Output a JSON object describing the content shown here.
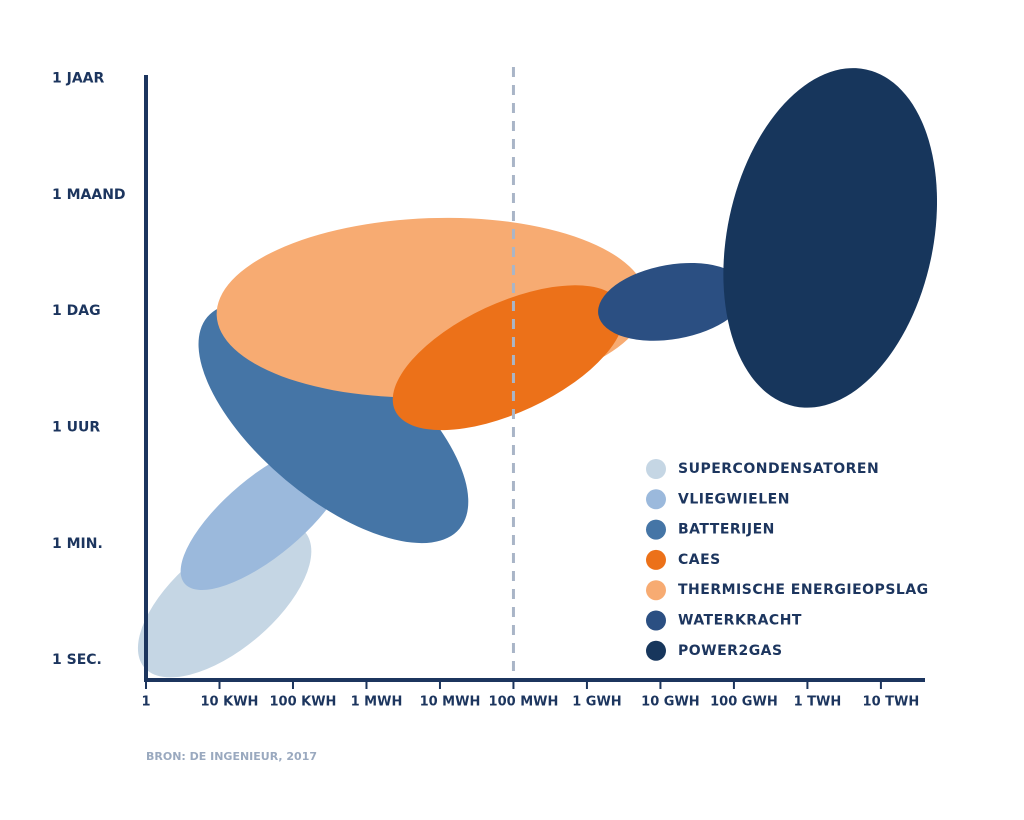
{
  "chart_data": {
    "type": "ellipse",
    "xlim": [
      0,
      10.6
    ],
    "ylim": [
      -0.17,
      5.03
    ],
    "xticks": [
      {
        "value": 0,
        "label": "1"
      },
      {
        "value": 1,
        "label": "10 KWH"
      },
      {
        "value": 2,
        "label": "100 KWH"
      },
      {
        "value": 3,
        "label": "1 MWH"
      },
      {
        "value": 4,
        "label": "10 MWH"
      },
      {
        "value": 5,
        "label": "100 MWH"
      },
      {
        "value": 6,
        "label": "1 GWH"
      },
      {
        "value": 7,
        "label": "10 GWH"
      },
      {
        "value": 8,
        "label": "100 GWH"
      },
      {
        "value": 9,
        "label": "1 TWH"
      },
      {
        "value": 10,
        "label": "10 TWH"
      }
    ],
    "yticks": [
      {
        "value": 0,
        "label": "1 SEC."
      },
      {
        "value": 1,
        "label": "1 MIN."
      },
      {
        "value": 2,
        "label": "1 UUR"
      },
      {
        "value": 3,
        "label": "1 DAG"
      },
      {
        "value": 4,
        "label": "1 MAAND"
      },
      {
        "value": 5,
        "label": "1 JAAR"
      }
    ],
    "vline": 5,
    "series": [
      {
        "name": "SUPERCONDENSATOREN",
        "color": "#c5d6e4",
        "center": [
          1.07,
          0.52
        ],
        "radii": [
          1.43,
          0.43
        ],
        "rotation": -40
      },
      {
        "name": "VLIEGWIELEN",
        "color": "#9bb9dc",
        "center": [
          1.62,
          1.24
        ],
        "radii": [
          1.43,
          0.34
        ],
        "rotation": -40
      },
      {
        "name": "BATTERIJEN",
        "color": "#4575a6",
        "center": [
          2.55,
          2.04
        ],
        "radii": [
          2.24,
          0.64
        ],
        "rotation": 40
      },
      {
        "name": "CAES",
        "color": "#ec7119",
        "center": [
          4.93,
          2.6
        ],
        "radii": [
          1.7,
          0.47
        ],
        "rotation": -25
      },
      {
        "name": "THERMISCHE ENERGIEOPSLAG",
        "color": "#f7ab72",
        "center": [
          3.89,
          3.03
        ],
        "radii": [
          2.93,
          0.77
        ],
        "rotation": -2
      },
      {
        "name": "WATERKRACHT",
        "color": "#2b4f82",
        "center": [
          7.16,
          3.08
        ],
        "radii": [
          1.02,
          0.32
        ],
        "rotation": -10
      },
      {
        "name": "POWER2GAS",
        "color": "#17365c",
        "center": [
          9.31,
          3.63
        ],
        "radii": [
          1.4,
          1.48
        ],
        "rotation": 12
      }
    ],
    "draw_order": [
      0,
      1,
      2,
      4,
      3,
      5,
      6
    ],
    "source": "BRON: DE INGENIEUR, 2017"
  }
}
